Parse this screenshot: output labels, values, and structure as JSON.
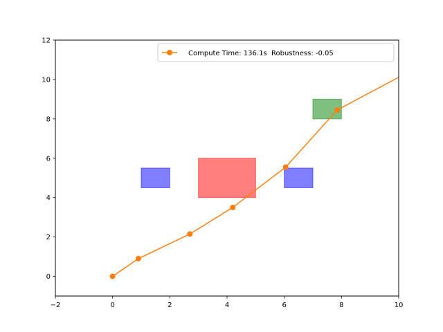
{
  "chart_data": {
    "type": "line",
    "title": "",
    "xlabel": "",
    "ylabel": "",
    "xlim": [
      -2,
      10
    ],
    "ylim": [
      -1,
      12
    ],
    "x_ticks": [
      -2,
      0,
      2,
      4,
      6,
      8,
      10
    ],
    "y_ticks": [
      0,
      2,
      4,
      6,
      8,
      10,
      12
    ],
    "x_tick_labels": [
      "−2",
      "0",
      "2",
      "4",
      "6",
      "8",
      "10"
    ],
    "y_tick_labels": [
      "0",
      "2",
      "4",
      "6",
      "8",
      "10",
      "12"
    ],
    "grid": false,
    "legend_position": "top-right",
    "series": [
      {
        "name": "Compute Time: 136.1s  Robustness: -0.05",
        "color": "#ff7f0e",
        "marker": "circle",
        "points": [
          {
            "x": 0.0,
            "y": 0.0
          },
          {
            "x": 0.9,
            "y": 0.9
          },
          {
            "x": 2.7,
            "y": 2.15
          },
          {
            "x": 4.2,
            "y": 3.5
          },
          {
            "x": 6.05,
            "y": 5.55
          },
          {
            "x": 7.85,
            "y": 8.45
          },
          {
            "x": 10.5,
            "y": 10.5
          }
        ]
      }
    ],
    "regions": [
      {
        "kind": "obstacle",
        "color": "#0000ff",
        "opacity": 0.5,
        "x": [
          1,
          2
        ],
        "y": [
          4.5,
          5.5
        ]
      },
      {
        "kind": "avoid",
        "color": "#ff0000",
        "opacity": 0.5,
        "x": [
          3,
          5
        ],
        "y": [
          4,
          6
        ]
      },
      {
        "kind": "obstacle",
        "color": "#0000ff",
        "opacity": 0.5,
        "x": [
          6,
          7
        ],
        "y": [
          4.5,
          5.5
        ]
      },
      {
        "kind": "goal",
        "color": "#008000",
        "opacity": 0.5,
        "x": [
          7,
          8
        ],
        "y": [
          8,
          9
        ]
      }
    ]
  }
}
